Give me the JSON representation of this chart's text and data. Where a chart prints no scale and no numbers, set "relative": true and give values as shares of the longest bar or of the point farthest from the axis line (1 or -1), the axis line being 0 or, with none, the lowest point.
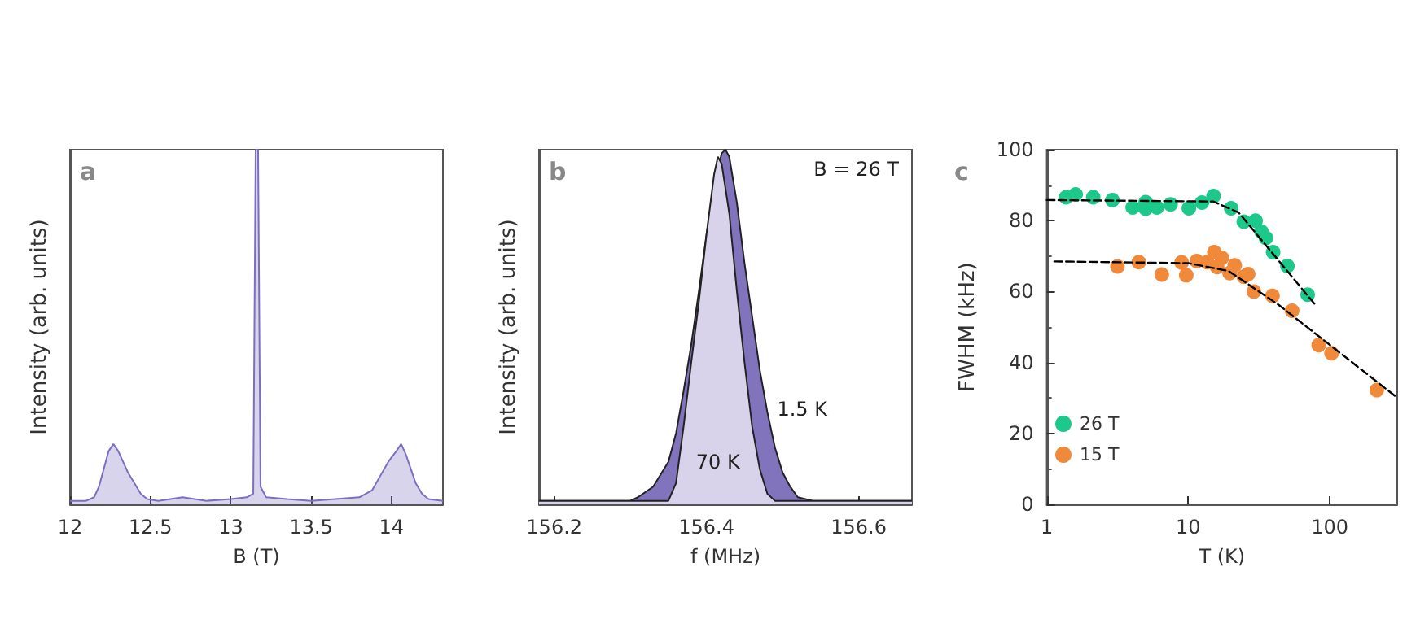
{
  "chart_data": [
    {
      "type": "area",
      "relative": true,
      "xlabel": "B (T)",
      "ylabel": "Intensity (arb. units)",
      "tick_labels": "x",
      "xlim": [
        12,
        14.32
      ],
      "xticks": [
        12,
        12.5,
        13,
        13.5,
        14
      ],
      "grid": false,
      "annotations": [
        "a"
      ],
      "x": [
        12.0,
        12.1,
        12.15,
        12.18,
        12.21,
        12.24,
        12.27,
        12.3,
        12.33,
        12.36,
        12.4,
        12.44,
        12.48,
        12.55,
        12.7,
        12.85,
        13.0,
        13.1,
        13.14,
        13.155,
        13.17,
        13.185,
        13.22,
        13.35,
        13.5,
        13.65,
        13.8,
        13.88,
        13.93,
        13.98,
        14.03,
        14.06,
        14.09,
        14.12,
        14.15,
        14.19,
        14.23,
        14.32
      ],
      "series": [
        {
          "color": "#7b6fc0",
          "values": [
            0.01,
            0.01,
            0.02,
            0.05,
            0.1,
            0.15,
            0.17,
            0.15,
            0.12,
            0.09,
            0.06,
            0.03,
            0.015,
            0.01,
            0.02,
            0.01,
            0.015,
            0.02,
            0.03,
            1,
            1,
            0.05,
            0.02,
            0.015,
            0.01,
            0.015,
            0.02,
            0.04,
            0.08,
            0.12,
            0.15,
            0.17,
            0.14,
            0.1,
            0.06,
            0.03,
            0.015,
            0.01
          ]
        }
      ]
    },
    {
      "type": "area",
      "relative": true,
      "xlabel": "f (MHz)",
      "ylabel": "Intensity (arb. units)",
      "tick_labels": "x",
      "xlim": [
        156.18,
        156.67
      ],
      "xticks": [
        156.2,
        156.4,
        156.6
      ],
      "grid": false,
      "annotations": [
        "b",
        "B = 26 T"
      ],
      "series": [
        {
          "name": "1.5 K",
          "color": "#8273bd",
          "x": [
            156.18,
            156.22,
            156.26,
            156.3,
            156.31,
            156.33,
            156.35,
            156.36,
            156.37,
            156.38,
            156.39,
            156.4,
            156.41,
            156.42,
            156.425,
            156.43,
            156.44,
            156.45,
            156.46,
            156.47,
            156.48,
            156.49,
            156.5,
            156.51,
            156.52,
            156.54,
            156.58,
            156.62,
            156.67
          ],
          "values": [
            0.01,
            0.01,
            0.01,
            0.01,
            0.02,
            0.05,
            0.12,
            0.2,
            0.32,
            0.45,
            0.6,
            0.76,
            0.9,
            0.99,
            1,
            0.98,
            0.85,
            0.68,
            0.53,
            0.38,
            0.26,
            0.16,
            0.09,
            0.05,
            0.02,
            0.01,
            0.01,
            0.01,
            0.01
          ]
        },
        {
          "name": "70 K",
          "color": "#d8d3ea",
          "x": [
            156.18,
            156.3,
            156.35,
            156.36,
            156.37,
            156.38,
            156.39,
            156.4,
            156.41,
            156.415,
            156.42,
            156.43,
            156.44,
            156.45,
            156.46,
            156.47,
            156.48,
            156.49,
            156.55,
            156.67
          ],
          "values": [
            0.01,
            0.01,
            0.01,
            0.06,
            0.22,
            0.4,
            0.57,
            0.76,
            0.93,
            0.98,
            0.96,
            0.82,
            0.6,
            0.4,
            0.22,
            0.1,
            0.03,
            0.01,
            0.01,
            0.01
          ]
        }
      ]
    },
    {
      "type": "scatter",
      "xlabel": "T (K)",
      "ylabel": "FWHM (kHz)",
      "log": "x",
      "xlim": [
        1,
        300
      ],
      "xticks": [
        1,
        10,
        100
      ],
      "ylim": [
        0,
        100
      ],
      "yticks": [
        0,
        20,
        40,
        60,
        80,
        100
      ],
      "grid": false,
      "legend": "bottom left",
      "marker": "circle",
      "annotations": [
        "c"
      ],
      "series": [
        {
          "name": "26 T",
          "color": "#1dc98a",
          "x": [
            1.37,
            1.6,
            2.13,
            2.91,
            4.05,
            5.0,
            5.0,
            6.0,
            7.5,
            10.1,
            12.5,
            15.1,
            20.1,
            24.7,
            29.9,
            32.9,
            35.4,
            39.8,
            50.2,
            69.8
          ],
          "values": [
            86.6,
            87.4,
            86.6,
            85.8,
            83.7,
            85.2,
            83.4,
            83.7,
            84.6,
            83.5,
            85.1,
            86.9,
            83.5,
            79.7,
            80,
            76.9,
            75.1,
            71.1,
            67.2,
            59.1
          ]
        },
        {
          "name": "15 T",
          "color": "#f08a3a",
          "x": [
            3.16,
            4.47,
            6.5,
            8.98,
            9.68,
            11.5,
            13.6,
            15.3,
            17.3,
            16.0,
            19.6,
            21.3,
            24.7,
            26.5,
            29.1,
            39.4,
            54.2,
            83.6,
            103,
            215
          ],
          "values": [
            67.1,
            68.3,
            64.8,
            68.2,
            64.6,
            68.6,
            68.3,
            71.1,
            69.5,
            66.9,
            65.2,
            67.4,
            64.2,
            64.9,
            60,
            58.8,
            54.6,
            44.9,
            42.6,
            32.2
          ]
        },
        {
          "type": "line",
          "color": "#000000",
          "line_style": "dashed",
          "marker": "none",
          "x": [
            1,
            15,
            22.7,
            79.3
          ],
          "values": [
            85.8,
            85.4,
            82.3,
            56.2
          ]
        },
        {
          "type": "line",
          "color": "#000000",
          "line_style": "dashed",
          "marker": "none",
          "x": [
            1.13,
            10,
            19.3,
            43.7,
            291
          ],
          "values": [
            68.5,
            68,
            65.8,
            56.2,
            30.5
          ]
        }
      ]
    }
  ]
}
